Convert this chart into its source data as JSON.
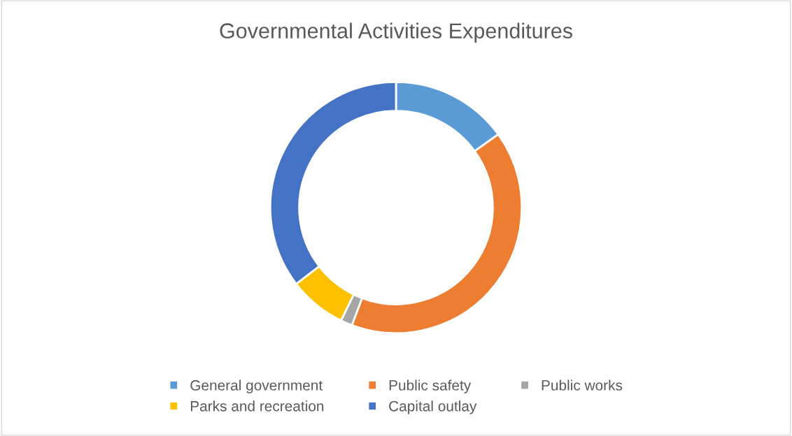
{
  "chart_data": {
    "type": "donut",
    "title": "Governmental Activities Expenditures",
    "categories": [
      "General government",
      "Public safety",
      "Public works",
      "Parks and recreation",
      "Capital outlay"
    ],
    "values": [
      15.1,
      40.6,
      1.5,
      7.4,
      35.4
    ],
    "colors": [
      "#5b9bd5",
      "#ed7d31",
      "#a5a5a5",
      "#ffc000",
      "#4472c4"
    ],
    "legend": "bottom"
  }
}
